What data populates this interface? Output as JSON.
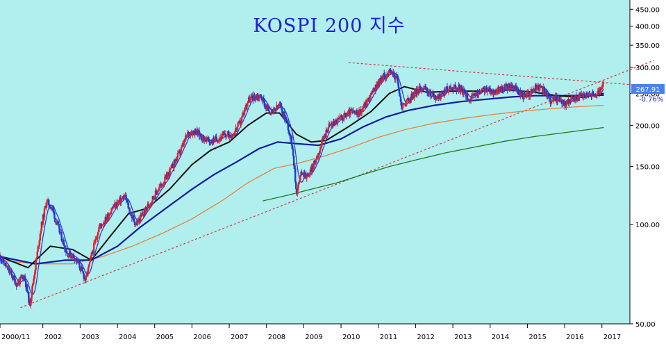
{
  "chart_data": {
    "type": "line",
    "title": "KOSPI 200 지수",
    "scale": "log",
    "ylim": [
      50,
      480
    ],
    "xlim": [
      2000.85,
      2017.75
    ],
    "background": "#b1eeee",
    "grid": false,
    "x_tick_labels": [
      "2000/11",
      "2002",
      "2003",
      "2004",
      "2005",
      "2006",
      "2007",
      "2008",
      "2009",
      "2010",
      "2011",
      "2012",
      "2013",
      "2014",
      "2015",
      "2016",
      "2017"
    ],
    "y_tick_labels": [
      "450.00",
      "400.00",
      "350.00",
      "300.00",
      "250.00",
      "200.00",
      "150.00",
      "100.00",
      "50.00"
    ],
    "last_price": "267.91",
    "change_pct": "-0.76%",
    "colors": {
      "up_candle": "#e22222",
      "down_candle": "#1a3ad6",
      "ma_short": "#2a3cd4",
      "ma_mid": "#111111",
      "ma_long1": "#101c9c",
      "ma_long2": "#e8803a",
      "ma_long3": "#1a7a1a",
      "trendline": "#e03030",
      "price_tag": "#4c80ee"
    },
    "price_series": [
      {
        "t": 2000.85,
        "v": 80
      },
      {
        "t": 2001.1,
        "v": 72
      },
      {
        "t": 2001.3,
        "v": 66
      },
      {
        "t": 2001.5,
        "v": 70
      },
      {
        "t": 2001.65,
        "v": 57
      },
      {
        "t": 2001.8,
        "v": 75
      },
      {
        "t": 2001.95,
        "v": 98
      },
      {
        "t": 2002.1,
        "v": 118
      },
      {
        "t": 2002.25,
        "v": 112
      },
      {
        "t": 2002.45,
        "v": 95
      },
      {
        "t": 2002.65,
        "v": 82
      },
      {
        "t": 2002.85,
        "v": 80
      },
      {
        "t": 2003.0,
        "v": 74
      },
      {
        "t": 2003.15,
        "v": 68
      },
      {
        "t": 2003.3,
        "v": 80
      },
      {
        "t": 2003.5,
        "v": 98
      },
      {
        "t": 2003.7,
        "v": 104
      },
      {
        "t": 2003.85,
        "v": 112
      },
      {
        "t": 2004.0,
        "v": 116
      },
      {
        "t": 2004.2,
        "v": 122
      },
      {
        "t": 2004.35,
        "v": 108
      },
      {
        "t": 2004.5,
        "v": 100
      },
      {
        "t": 2004.7,
        "v": 108
      },
      {
        "t": 2004.9,
        "v": 118
      },
      {
        "t": 2005.1,
        "v": 128
      },
      {
        "t": 2005.3,
        "v": 138
      },
      {
        "t": 2005.5,
        "v": 152
      },
      {
        "t": 2005.7,
        "v": 168
      },
      {
        "t": 2005.9,
        "v": 190
      },
      {
        "t": 2006.1,
        "v": 192
      },
      {
        "t": 2006.3,
        "v": 183
      },
      {
        "t": 2006.5,
        "v": 178
      },
      {
        "t": 2006.7,
        "v": 183
      },
      {
        "t": 2006.9,
        "v": 187
      },
      {
        "t": 2007.1,
        "v": 188
      },
      {
        "t": 2007.3,
        "v": 205
      },
      {
        "t": 2007.5,
        "v": 238
      },
      {
        "t": 2007.7,
        "v": 245
      },
      {
        "t": 2007.85,
        "v": 245
      },
      {
        "t": 2008.0,
        "v": 226
      },
      {
        "t": 2008.15,
        "v": 218
      },
      {
        "t": 2008.35,
        "v": 230
      },
      {
        "t": 2008.55,
        "v": 205
      },
      {
        "t": 2008.7,
        "v": 172
      },
      {
        "t": 2008.8,
        "v": 125
      },
      {
        "t": 2008.95,
        "v": 145
      },
      {
        "t": 2009.1,
        "v": 140
      },
      {
        "t": 2009.25,
        "v": 150
      },
      {
        "t": 2009.45,
        "v": 172
      },
      {
        "t": 2009.65,
        "v": 198
      },
      {
        "t": 2009.85,
        "v": 205
      },
      {
        "t": 2010.05,
        "v": 212
      },
      {
        "t": 2010.25,
        "v": 220
      },
      {
        "t": 2010.45,
        "v": 216
      },
      {
        "t": 2010.65,
        "v": 232
      },
      {
        "t": 2010.85,
        "v": 252
      },
      {
        "t": 2011.0,
        "v": 270
      },
      {
        "t": 2011.15,
        "v": 282
      },
      {
        "t": 2011.35,
        "v": 290
      },
      {
        "t": 2011.5,
        "v": 278
      },
      {
        "t": 2011.62,
        "v": 228
      },
      {
        "t": 2011.8,
        "v": 238
      },
      {
        "t": 2012.0,
        "v": 252
      },
      {
        "t": 2012.2,
        "v": 262
      },
      {
        "t": 2012.4,
        "v": 248
      },
      {
        "t": 2012.6,
        "v": 242
      },
      {
        "t": 2012.8,
        "v": 255
      },
      {
        "t": 2013.0,
        "v": 262
      },
      {
        "t": 2013.2,
        "v": 258
      },
      {
        "t": 2013.45,
        "v": 240
      },
      {
        "t": 2013.65,
        "v": 248
      },
      {
        "t": 2013.85,
        "v": 258
      },
      {
        "t": 2014.05,
        "v": 252
      },
      {
        "t": 2014.25,
        "v": 256
      },
      {
        "t": 2014.5,
        "v": 262
      },
      {
        "t": 2014.7,
        "v": 258
      },
      {
        "t": 2014.85,
        "v": 245
      },
      {
        "t": 2015.05,
        "v": 250
      },
      {
        "t": 2015.25,
        "v": 262
      },
      {
        "t": 2015.45,
        "v": 255
      },
      {
        "t": 2015.6,
        "v": 238
      },
      {
        "t": 2015.8,
        "v": 242
      },
      {
        "t": 2016.0,
        "v": 232
      },
      {
        "t": 2016.2,
        "v": 240
      },
      {
        "t": 2016.4,
        "v": 244
      },
      {
        "t": 2016.6,
        "v": 250
      },
      {
        "t": 2016.8,
        "v": 246
      },
      {
        "t": 2017.0,
        "v": 256
      },
      {
        "t": 2017.05,
        "v": 268
      }
    ],
    "ma_mid": [
      {
        "t": 2000.85,
        "v": 80
      },
      {
        "t": 2001.6,
        "v": 74
      },
      {
        "t": 2002.2,
        "v": 86
      },
      {
        "t": 2002.8,
        "v": 84
      },
      {
        "t": 2003.3,
        "v": 78
      },
      {
        "t": 2003.8,
        "v": 92
      },
      {
        "t": 2004.3,
        "v": 108
      },
      {
        "t": 2004.8,
        "v": 112
      },
      {
        "t": 2005.4,
        "v": 128
      },
      {
        "t": 2006.0,
        "v": 152
      },
      {
        "t": 2006.5,
        "v": 168
      },
      {
        "t": 2007.0,
        "v": 178
      },
      {
        "t": 2007.5,
        "v": 200
      },
      {
        "t": 2008.0,
        "v": 218
      },
      {
        "t": 2008.35,
        "v": 218
      },
      {
        "t": 2008.8,
        "v": 188
      },
      {
        "t": 2009.2,
        "v": 178
      },
      {
        "t": 2009.6,
        "v": 180
      },
      {
        "t": 2010.2,
        "v": 198
      },
      {
        "t": 2010.8,
        "v": 220
      },
      {
        "t": 2011.3,
        "v": 250
      },
      {
        "t": 2011.7,
        "v": 262
      },
      {
        "t": 2012.3,
        "v": 252
      },
      {
        "t": 2013.0,
        "v": 254
      },
      {
        "t": 2013.8,
        "v": 254
      },
      {
        "t": 2014.5,
        "v": 256
      },
      {
        "t": 2015.2,
        "v": 252
      },
      {
        "t": 2015.8,
        "v": 246
      },
      {
        "t": 2016.5,
        "v": 243
      },
      {
        "t": 2017.05,
        "v": 250
      }
    ],
    "ma_long1": [
      {
        "t": 2000.85,
        "v": 80
      },
      {
        "t": 2001.8,
        "v": 76
      },
      {
        "t": 2002.6,
        "v": 78
      },
      {
        "t": 2003.3,
        "v": 78
      },
      {
        "t": 2004.0,
        "v": 86
      },
      {
        "t": 2004.6,
        "v": 98
      },
      {
        "t": 2005.3,
        "v": 112
      },
      {
        "t": 2006.0,
        "v": 128
      },
      {
        "t": 2006.6,
        "v": 142
      },
      {
        "t": 2007.2,
        "v": 155
      },
      {
        "t": 2007.8,
        "v": 170
      },
      {
        "t": 2008.3,
        "v": 178
      },
      {
        "t": 2008.8,
        "v": 176
      },
      {
        "t": 2009.4,
        "v": 174
      },
      {
        "t": 2010.0,
        "v": 182
      },
      {
        "t": 2010.6,
        "v": 198
      },
      {
        "t": 2011.2,
        "v": 212
      },
      {
        "t": 2011.8,
        "v": 222
      },
      {
        "t": 2012.5,
        "v": 230
      },
      {
        "t": 2013.2,
        "v": 236
      },
      {
        "t": 2013.9,
        "v": 240
      },
      {
        "t": 2014.6,
        "v": 244
      },
      {
        "t": 2015.2,
        "v": 246
      },
      {
        "t": 2016.0,
        "v": 246
      },
      {
        "t": 2017.05,
        "v": 247
      }
    ],
    "ma_long2": [
      {
        "t": 2000.85,
        "v": 78
      },
      {
        "t": 2001.8,
        "v": 76
      },
      {
        "t": 2002.8,
        "v": 76
      },
      {
        "t": 2003.6,
        "v": 80
      },
      {
        "t": 2004.4,
        "v": 86
      },
      {
        "t": 2005.2,
        "v": 94
      },
      {
        "t": 2006.0,
        "v": 104
      },
      {
        "t": 2006.8,
        "v": 118
      },
      {
        "t": 2007.5,
        "v": 134
      },
      {
        "t": 2008.2,
        "v": 148
      },
      {
        "t": 2008.9,
        "v": 154
      },
      {
        "t": 2009.6,
        "v": 162
      },
      {
        "t": 2010.3,
        "v": 172
      },
      {
        "t": 2011.0,
        "v": 184
      },
      {
        "t": 2011.7,
        "v": 194
      },
      {
        "t": 2012.5,
        "v": 203
      },
      {
        "t": 2013.3,
        "v": 210
      },
      {
        "t": 2014.1,
        "v": 216
      },
      {
        "t": 2014.9,
        "v": 221
      },
      {
        "t": 2015.7,
        "v": 225
      },
      {
        "t": 2016.4,
        "v": 228
      },
      {
        "t": 2017.05,
        "v": 230
      }
    ],
    "ma_long3": [
      {
        "t": 2007.9,
        "v": 118
      },
      {
        "t": 2008.6,
        "v": 123
      },
      {
        "t": 2009.2,
        "v": 128
      },
      {
        "t": 2009.9,
        "v": 134
      },
      {
        "t": 2010.6,
        "v": 142
      },
      {
        "t": 2011.3,
        "v": 150
      },
      {
        "t": 2012.0,
        "v": 157
      },
      {
        "t": 2012.8,
        "v": 165
      },
      {
        "t": 2013.6,
        "v": 172
      },
      {
        "t": 2014.4,
        "v": 179
      },
      {
        "t": 2015.2,
        "v": 185
      },
      {
        "t": 2016.0,
        "v": 190
      },
      {
        "t": 2017.05,
        "v": 197
      }
    ],
    "trend_support": [
      {
        "t": 2001.4,
        "v": 56
      },
      {
        "t": 2018.4,
        "v": 315
      }
    ],
    "trend_resistance": [
      {
        "t": 2010.2,
        "v": 310
      },
      {
        "t": 2018.1,
        "v": 264
      }
    ]
  }
}
